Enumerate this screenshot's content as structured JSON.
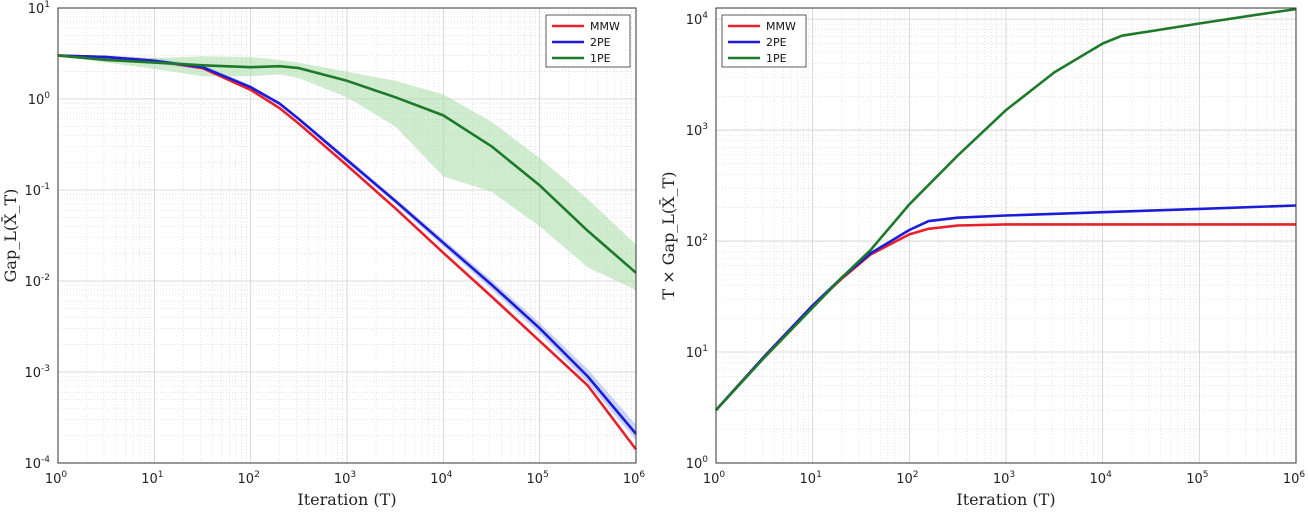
{
  "colors": {
    "MMW": "#e8202a",
    "2PE": "#1c1cd8",
    "1PE": "#1e7a2a",
    "band_2PE": "#9fb0f0",
    "band_1PE": "#a8dca8"
  },
  "chart_data": [
    {
      "type": "line",
      "xscale": "log",
      "yscale": "log",
      "xlim": [
        0,
        6
      ],
      "ylim": [
        -4,
        1
      ],
      "xlim_note": "exponents of 10",
      "xlabel": "Iteration (T)",
      "ylabel": "Gap_L(X̄_T)",
      "xticks": [
        "10^0",
        "10^1",
        "10^2",
        "10^3",
        "10^4",
        "10^5",
        "10^6"
      ],
      "yticks": [
        "10^-4",
        "10^-3",
        "10^-2",
        "10^-1",
        "10^0",
        "10^1"
      ],
      "legend": {
        "position": "top-right",
        "entries": [
          "MMW",
          "2PE",
          "1PE"
        ]
      },
      "grid": true,
      "series": [
        {
          "name": "MMW",
          "log10x": [
            0,
            0.5,
            1,
            1.5,
            2,
            2.3,
            2.5,
            3,
            3.5,
            4,
            4.5,
            5,
            5.5,
            6
          ],
          "log10y": [
            0.477,
            0.46,
            0.42,
            0.34,
            0.1,
            -0.1,
            -0.27,
            -0.73,
            -1.2,
            -1.69,
            -2.17,
            -2.66,
            -3.15,
            -3.85
          ]
        },
        {
          "name": "2PE",
          "log10x": [
            0,
            0.5,
            1,
            1.5,
            2,
            2.3,
            2.5,
            3,
            3.5,
            4,
            4.5,
            5,
            5.5,
            6
          ],
          "log10y": [
            0.477,
            0.46,
            0.42,
            0.35,
            0.13,
            -0.05,
            -0.22,
            -0.67,
            -1.12,
            -1.58,
            -2.04,
            -2.52,
            -3.05,
            -3.68
          ],
          "band_lo": [
            0.477,
            0.44,
            0.39,
            0.32,
            0.11,
            -0.07,
            -0.24,
            -0.7,
            -1.15,
            -1.62,
            -2.09,
            -2.58,
            -3.12,
            -3.75
          ],
          "band_hi": [
            0.477,
            0.48,
            0.45,
            0.38,
            0.15,
            -0.03,
            -0.2,
            -0.64,
            -1.09,
            -1.54,
            -1.99,
            -2.46,
            -2.97,
            -3.58
          ]
        },
        {
          "name": "1PE",
          "log10x": [
            0,
            0.5,
            1,
            1.5,
            2,
            2.3,
            2.5,
            3,
            3.5,
            4,
            4.5,
            5,
            5.5,
            6
          ],
          "log10y": [
            0.477,
            0.43,
            0.4,
            0.37,
            0.35,
            0.36,
            0.34,
            0.2,
            0.02,
            -0.18,
            -0.52,
            -0.95,
            -1.45,
            -1.91
          ],
          "band_lo": [
            0.477,
            0.4,
            0.33,
            0.25,
            0.25,
            0.27,
            0.23,
            0.02,
            -0.3,
            -0.85,
            -1.02,
            -1.4,
            -1.85,
            -2.1
          ],
          "band_hi": [
            0.477,
            0.47,
            0.45,
            0.47,
            0.46,
            0.43,
            0.4,
            0.3,
            0.2,
            0.05,
            -0.25,
            -0.65,
            -1.1,
            -1.6
          ]
        }
      ]
    },
    {
      "type": "line",
      "xscale": "log",
      "yscale": "log",
      "xlim": [
        0,
        6
      ],
      "ylim": [
        0,
        4.1
      ],
      "xlabel": "Iteration (T)",
      "ylabel": "T × Gap_L(X̄_T)",
      "xticks": [
        "10^0",
        "10^1",
        "10^2",
        "10^3",
        "10^4",
        "10^5",
        "10^6"
      ],
      "yticks": [
        "10^0",
        "10^1",
        "10^2",
        "10^3",
        "10^4"
      ],
      "legend": {
        "position": "top-left",
        "entries": [
          "MMW",
          "2PE",
          "1PE"
        ]
      },
      "grid": true,
      "series": [
        {
          "name": "MMW",
          "log10x": [
            0,
            0.5,
            1,
            1.3,
            1.6,
            2,
            2.2,
            2.5,
            3,
            4,
            5,
            6
          ],
          "log10y": [
            0.477,
            0.96,
            1.42,
            1.66,
            1.88,
            2.06,
            2.11,
            2.14,
            2.15,
            2.15,
            2.15,
            2.15
          ]
        },
        {
          "name": "2PE",
          "log10x": [
            0,
            0.5,
            1,
            1.3,
            1.6,
            2,
            2.2,
            2.5,
            3,
            4,
            5,
            6
          ],
          "log10y": [
            0.477,
            0.96,
            1.42,
            1.67,
            1.89,
            2.1,
            2.18,
            2.21,
            2.23,
            2.26,
            2.29,
            2.32
          ]
        },
        {
          "name": "1PE",
          "log10x": [
            0,
            0.5,
            1,
            1.3,
            1.6,
            2,
            2.5,
            3,
            3.5,
            4,
            4.2,
            5,
            5.6,
            6
          ],
          "log10y": [
            0.477,
            0.95,
            1.4,
            1.67,
            1.92,
            2.33,
            2.77,
            3.18,
            3.52,
            3.78,
            3.85,
            3.96,
            4.04,
            4.09
          ]
        }
      ]
    }
  ]
}
